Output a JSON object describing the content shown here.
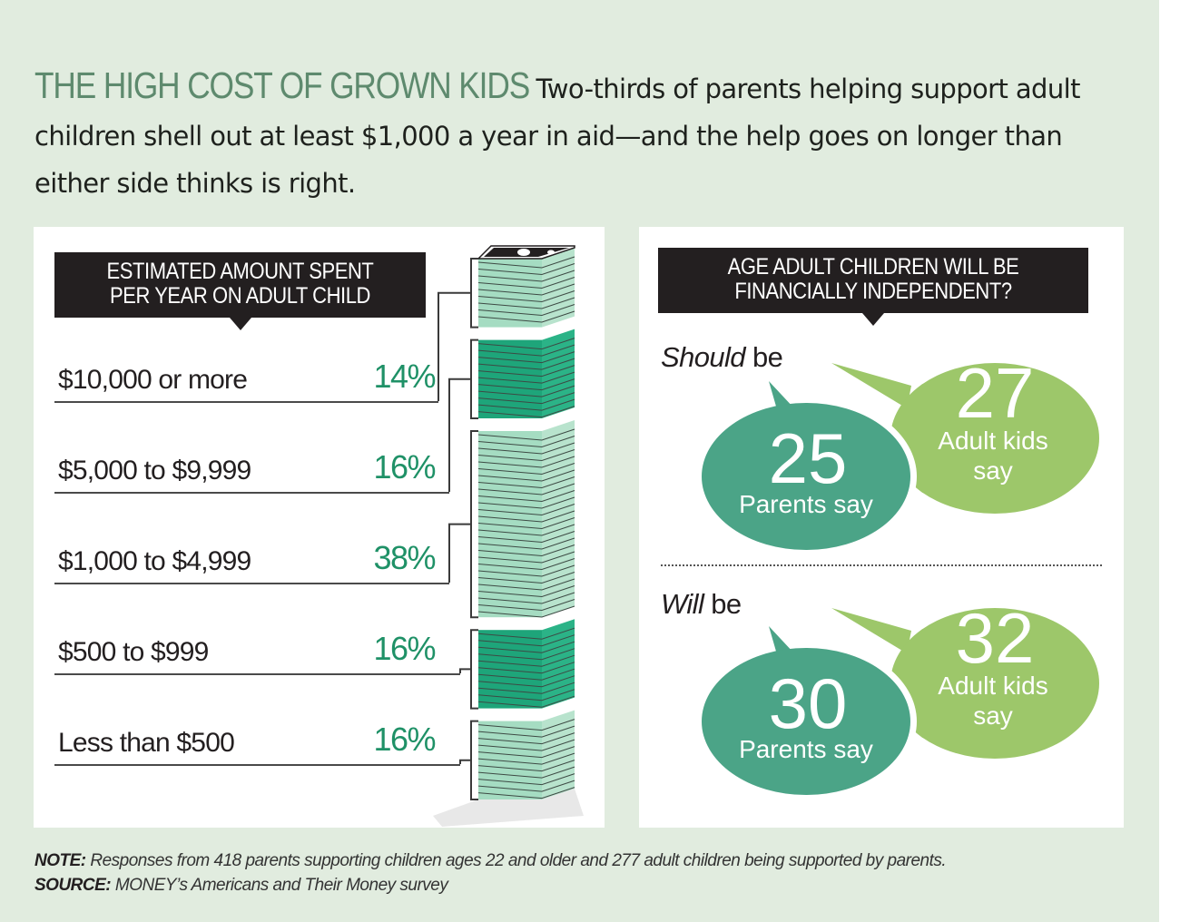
{
  "header": {
    "headline": "THE HIGH COST OF GROWN KIDS",
    "deck": "Two-thirds of parents helping support adult children shell out at least $1,000 a year in aid—and the help goes on longer than either side thinks is right."
  },
  "colors": {
    "background": "#e1ecdf",
    "headline": "#5e8a6e",
    "percent": "#1f9167",
    "stack_light": "#a5dcc2",
    "stack_dark": "#1ea57a",
    "bubble_parents": "#4ba487",
    "bubble_kids": "#9dc76a",
    "header_box": "#231f20"
  },
  "left_panel": {
    "header_line1": "ESTIMATED AMOUNT SPENT",
    "header_line2": "PER YEAR ON ADULT CHILD",
    "icon": "money-stack-icon"
  },
  "right_panel": {
    "header_line1": "AGE ADULT CHILDREN WILL BE",
    "header_line2": "FINANCIALLY INDEPENDENT?",
    "groups": [
      {
        "label_emph": "Should",
        "label_rest": " be",
        "parents_value": "25",
        "parents_label": "Parents say",
        "kids_value": "27",
        "kids_label_line1": "Adult kids",
        "kids_label_line2": "say"
      },
      {
        "label_emph": "Will",
        "label_rest": " be",
        "parents_value": "30",
        "parents_label": "Parents say",
        "kids_value": "32",
        "kids_label_line1": "Adult kids",
        "kids_label_line2": "say"
      }
    ]
  },
  "footer": {
    "note_label": "NOTE:",
    "note_text": " Responses from 418 parents supporting children ages 22 and older and 277 adult children being supported by parents.",
    "source_label": "SOURCE:",
    "source_text": " MONEY’s Americans and Their Money survey"
  },
  "chart_data": [
    {
      "type": "bar",
      "title": "ESTIMATED AMOUNT SPENT PER YEAR ON ADULT CHILD",
      "categories": [
        "$10,000 or more",
        "$5,000 to $9,999",
        "$1,000 to $4,999",
        "$500 to $999",
        "Less than $500"
      ],
      "values": [
        14,
        16,
        38,
        16,
        16
      ],
      "value_labels": [
        "14%",
        "16%",
        "38%",
        "16%",
        "16%"
      ],
      "unit": "%",
      "style": [
        "light",
        "dark",
        "light",
        "dark",
        "light"
      ],
      "xlabel": "",
      "ylabel": ""
    },
    {
      "type": "table",
      "title": "AGE ADULT CHILDREN WILL BE FINANCIALLY INDEPENDENT?",
      "columns": [
        "",
        "Parents say",
        "Adult kids say"
      ],
      "rows": [
        [
          "Should be",
          25,
          27
        ],
        [
          "Will be",
          30,
          32
        ]
      ]
    }
  ]
}
